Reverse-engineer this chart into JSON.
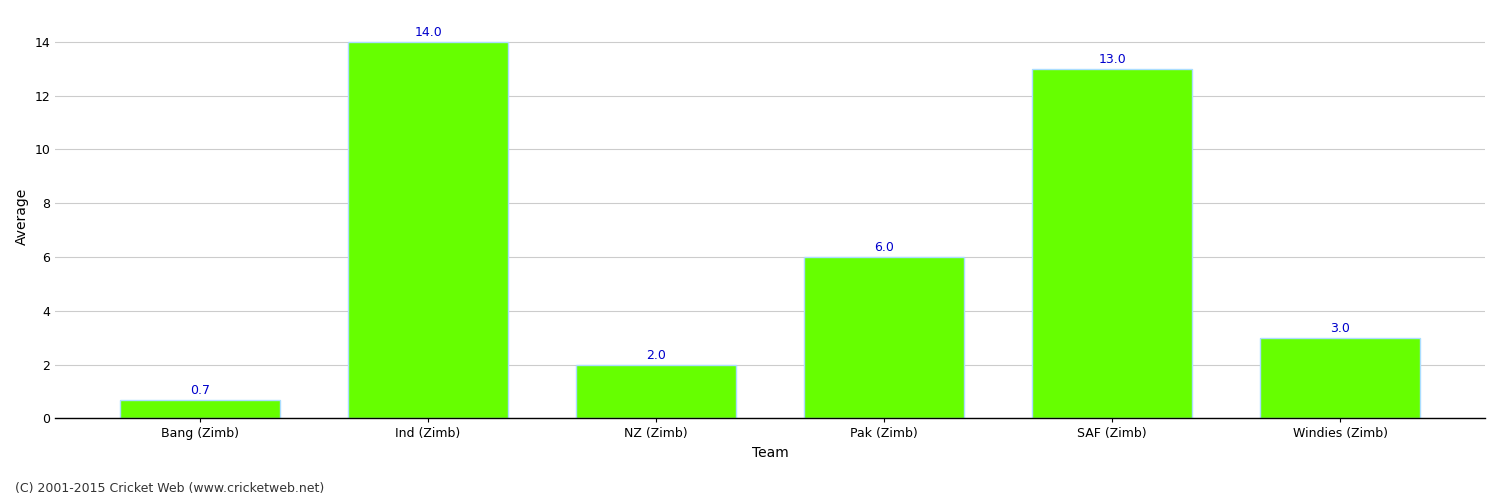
{
  "title": "",
  "categories": [
    "Bang (Zimb)",
    "Ind (Zimb)",
    "NZ (Zimb)",
    "Pak (Zimb)",
    "SAF (Zimb)",
    "Windies (Zimb)"
  ],
  "values": [
    0.7,
    14.0,
    2.0,
    6.0,
    13.0,
    3.0
  ],
  "bar_color": "#66ff00",
  "bar_edge_color": "#aaddff",
  "ylabel": "Average",
  "xlabel": "Team",
  "ylim": [
    0,
    15
  ],
  "yticks": [
    0,
    2,
    4,
    6,
    8,
    10,
    12,
    14
  ],
  "value_label_color": "#0000cc",
  "value_label_fontsize": 9,
  "axis_label_fontsize": 10,
  "tick_label_fontsize": 9,
  "footer_text": "(C) 2001-2015 Cricket Web (www.cricketweb.net)",
  "footer_fontsize": 9,
  "footer_color": "#333333",
  "background_color": "#ffffff",
  "grid_color": "#cccccc",
  "title_color": "#000000",
  "bar_width": 0.7,
  "spine_color": "#000000"
}
